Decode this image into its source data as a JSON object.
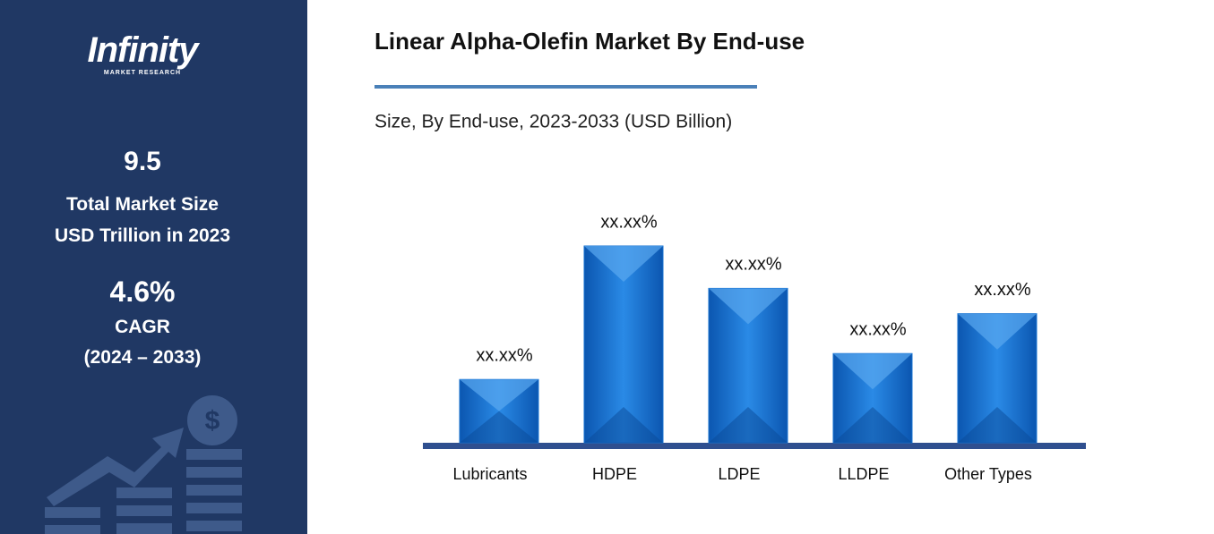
{
  "sidebar": {
    "logo": "Infinity",
    "logo_sub": "MARKET RESEARCH",
    "market_size": "9.5",
    "market_size_label_1": "Total Market Size",
    "market_size_label_2": "USD Trillion in 2023",
    "cagr": "4.6%",
    "cagr_label": "CAGR",
    "cagr_period": "(2024 – 2033)"
  },
  "chart_data": {
    "type": "bar",
    "title": "Linear Alpha-Olefin Market By End-use",
    "subtitle": "Size, By End-use, 2023-2033 (USD Billion)",
    "categories": [
      "Lubricants",
      "HDPE",
      "LDPE",
      "LLDPE",
      "Other Types"
    ],
    "values": [
      10,
      31.1,
      24.4,
      14.1,
      20.4
    ],
    "value_labels": [
      "xx.xx%",
      "xx.xx%",
      "xx.xx%",
      "xx.xx%",
      "xx.xx%"
    ],
    "color": "#1670d0"
  }
}
